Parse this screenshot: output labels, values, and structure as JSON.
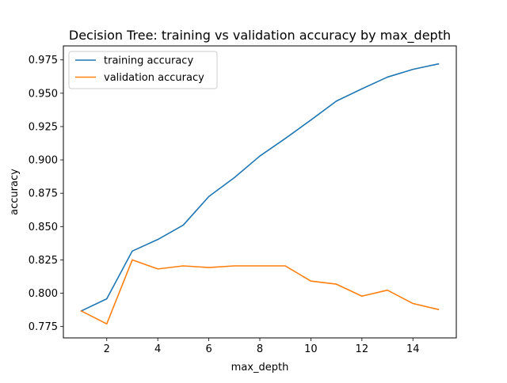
{
  "chart_data": {
    "type": "line",
    "title": "Decision Tree: training vs validation accuracy by max_depth",
    "xlabel": "max_depth",
    "ylabel": "accuracy",
    "xlim": [
      0.3,
      15.7
    ],
    "ylim": [
      0.7665,
      0.9855
    ],
    "xticks": [
      2,
      4,
      6,
      8,
      10,
      12,
      14
    ],
    "xtick_labels": [
      "2",
      "4",
      "6",
      "8",
      "10",
      "12",
      "14"
    ],
    "yticks": [
      0.775,
      0.8,
      0.825,
      0.85,
      0.875,
      0.9,
      0.925,
      0.95,
      0.975
    ],
    "ytick_labels": [
      "0.775",
      "0.800",
      "0.825",
      "0.850",
      "0.875",
      "0.900",
      "0.925",
      "0.950",
      "0.975"
    ],
    "grid": false,
    "legend": "upper-left",
    "x": [
      1,
      2,
      3,
      4,
      5,
      6,
      7,
      8,
      9,
      10,
      11,
      12,
      13,
      14,
      15
    ],
    "series": [
      {
        "name": "training accuracy",
        "color": "#1f77b4",
        "values": [
          0.7867,
          0.7958,
          0.8316,
          0.8403,
          0.8511,
          0.8725,
          0.8867,
          0.9029,
          0.9161,
          0.9299,
          0.9441,
          0.9533,
          0.9621,
          0.9679,
          0.972
        ]
      },
      {
        "name": "validation accuracy",
        "color": "#ff7f0e",
        "values": [
          0.7867,
          0.777,
          0.825,
          0.8182,
          0.8205,
          0.8193,
          0.8205,
          0.8205,
          0.8205,
          0.8091,
          0.8068,
          0.7978,
          0.8023,
          0.7923,
          0.7878
        ]
      }
    ]
  }
}
